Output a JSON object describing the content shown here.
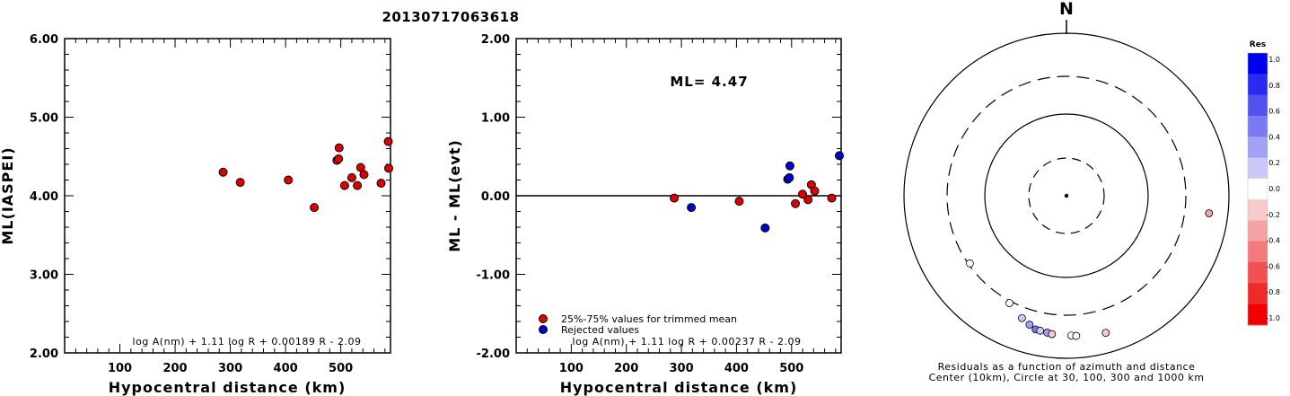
{
  "title": "20130717063618",
  "chart_data": [
    {
      "type": "scatter",
      "id": "ml-vs-distance",
      "xlabel": "Hypocentral distance (km)",
      "ylabel": "ML(IASPEI)",
      "xlim": [
        0,
        590
      ],
      "ylim": [
        2.0,
        6.0
      ],
      "x_ticks": [
        100,
        200,
        300,
        400,
        500
      ],
      "y_ticks": [
        2.0,
        3.0,
        4.0,
        5.0,
        6.0
      ],
      "y_tick_labels": [
        "2.00",
        "3.00",
        "4.00",
        "5.00",
        "6.00"
      ],
      "formula": "log A(nm) + 1.11 log R + 0.00189 R - 2.09",
      "series": [
        {
          "marker_color": "#dd0000",
          "points": [
            {
              "x": 287,
              "y": 4.3
            },
            {
              "x": 318,
              "y": 4.17
            },
            {
              "x": 405,
              "y": 4.2
            },
            {
              "x": 452,
              "y": 3.85
            },
            {
              "x": 493,
              "y": 4.45
            },
            {
              "x": 496,
              "y": 4.47
            },
            {
              "x": 497,
              "y": 4.61
            },
            {
              "x": 507,
              "y": 4.13
            },
            {
              "x": 520,
              "y": 4.23
            },
            {
              "x": 530,
              "y": 4.13
            },
            {
              "x": 536,
              "y": 4.36
            },
            {
              "x": 542,
              "y": 4.27
            },
            {
              "x": 573,
              "y": 4.16
            },
            {
              "x": 586,
              "y": 4.69
            },
            {
              "x": 590,
              "y": 4.35
            }
          ]
        }
      ]
    },
    {
      "type": "scatter",
      "id": "residual-vs-distance",
      "xlabel": "Hypocentral distance (km)",
      "ylabel": "ML - ML(evt)",
      "xlim": [
        0,
        590
      ],
      "ylim": [
        -2.0,
        2.0
      ],
      "x_ticks": [
        100,
        200,
        300,
        400,
        500
      ],
      "y_ticks": [
        -2.0,
        -1.0,
        0.0,
        1.0,
        2.0
      ],
      "y_tick_labels": [
        "-2.00",
        "-1.00",
        "0.00",
        "1.00",
        "2.00"
      ],
      "reference_line_y": 0.0,
      "annotation": "ML= 4.47",
      "formula": "log A(nm) + 1.11 log R + 0.00237 R - 2.09",
      "series": [
        {
          "name": "25%-75% values for trimmed mean",
          "marker_color": "#dd0000",
          "points": [
            {
              "x": 287,
              "y": -0.03
            },
            {
              "x": 405,
              "y": -0.07
            },
            {
              "x": 507,
              "y": -0.1
            },
            {
              "x": 520,
              "y": 0.02
            },
            {
              "x": 530,
              "y": -0.05
            },
            {
              "x": 536,
              "y": 0.14
            },
            {
              "x": 542,
              "y": 0.06
            },
            {
              "x": 573,
              "y": -0.03
            }
          ]
        },
        {
          "name": "Rejected values",
          "marker_color": "#0000cc",
          "points": [
            {
              "x": 318,
              "y": -0.15
            },
            {
              "x": 452,
              "y": -0.41
            },
            {
              "x": 493,
              "y": 0.21
            },
            {
              "x": 496,
              "y": 0.23
            },
            {
              "x": 497,
              "y": 0.38
            },
            {
              "x": 590,
              "y": 0.51
            }
          ]
        }
      ]
    },
    {
      "type": "scatter",
      "id": "residual-map",
      "north_label": "N",
      "caption_line1": "Residuals as a function of azimuth and distance",
      "caption_line2": "Center (10km), Circle at 30, 100, 300 and 1000 km",
      "colorbar": {
        "title": "Res",
        "ticks": [
          "1.0",
          "0.8",
          "0.6",
          "0.4",
          "0.2",
          "0.0",
          "-0.2",
          "-0.4",
          "-0.6",
          "-0.8",
          "-1.0"
        ],
        "colors": [
          "#0000f0",
          "#2a2af0",
          "#5252f0",
          "#7a7af2",
          "#a2a2f5",
          "#cacaf8",
          "#ffffff",
          "#f8caca",
          "#f5a2a2",
          "#f27a7a",
          "#f05252",
          "#f02a2a",
          "#f00000"
        ]
      },
      "stations": [
        {
          "azimuth_deg": 97,
          "distance_km": 590,
          "residual": -0.4
        },
        {
          "azimuth_deg": 235,
          "distance_km": 287,
          "residual": -0.03
        },
        {
          "azimuth_deg": 208,
          "distance_km": 318,
          "residual": 0.03
        },
        {
          "azimuth_deg": 200,
          "distance_km": 405,
          "residual": 0.15
        },
        {
          "azimuth_deg": 196,
          "distance_km": 452,
          "residual": 0.3
        },
        {
          "azimuth_deg": 193,
          "distance_km": 493,
          "residual": 0.45
        },
        {
          "azimuth_deg": 191,
          "distance_km": 497,
          "residual": 0.1
        },
        {
          "azimuth_deg": 188,
          "distance_km": 507,
          "residual": 0.4
        },
        {
          "azimuth_deg": 186,
          "distance_km": 520,
          "residual": -0.15
        },
        {
          "azimuth_deg": 178,
          "distance_km": 530,
          "residual": 0.05
        },
        {
          "azimuth_deg": 176,
          "distance_km": 540,
          "residual": 0.0
        },
        {
          "azimuth_deg": 164,
          "distance_km": 573,
          "residual": -0.1
        }
      ]
    }
  ]
}
